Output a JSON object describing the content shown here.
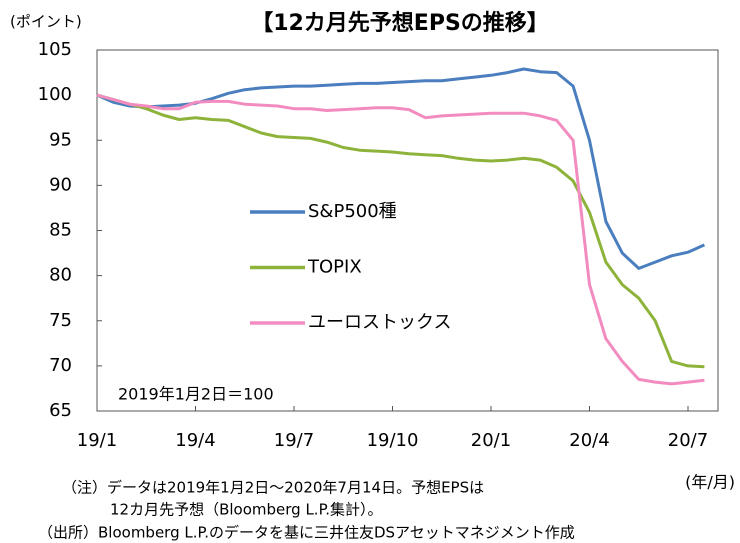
{
  "chart_data": {
    "type": "line",
    "title": "【12カ月先予想EPSの推移】",
    "y_label": "(ポイント)",
    "x_label": "(年/月)",
    "annotation": "2019年1月2日＝100",
    "notes": [
      "（注）データは2019年1月2日～2020年7月14日。予想EPSは",
      "12カ月先予想（Bloomberg L.P.集計）。",
      "（出所）Bloomberg L.P.のデータを基に三井住友DSアセットマネジメント作成"
    ],
    "categories": [
      "19/1",
      null,
      null,
      null,
      null,
      null,
      "19/4",
      null,
      null,
      null,
      null,
      null,
      "19/7",
      null,
      null,
      null,
      null,
      null,
      "19/10",
      null,
      null,
      null,
      null,
      null,
      "20/1",
      null,
      null,
      null,
      null,
      null,
      "20/4",
      null,
      null,
      null,
      null,
      null,
      "20/7",
      null
    ],
    "series": [
      {
        "name": "S&P500種",
        "color": "#4a7ebf",
        "values": [
          100,
          99.2,
          98.8,
          98.7,
          98.8,
          98.9,
          99.1,
          99.6,
          100.2,
          100.6,
          100.8,
          100.9,
          101.0,
          101.0,
          101.1,
          101.2,
          101.3,
          101.3,
          101.4,
          101.5,
          101.6,
          101.6,
          101.8,
          102.0,
          102.2,
          102.5,
          102.9,
          102.6,
          102.5,
          101.0,
          95.0,
          86.0,
          82.5,
          80.8,
          81.5,
          82.2,
          82.6,
          83.4
        ]
      },
      {
        "name": "TOPIX",
        "color": "#8db33a",
        "values": [
          100,
          99.5,
          99.0,
          98.5,
          97.8,
          97.3,
          97.5,
          97.3,
          97.2,
          96.5,
          95.8,
          95.4,
          95.3,
          95.2,
          94.8,
          94.2,
          93.9,
          93.8,
          93.7,
          93.5,
          93.4,
          93.3,
          93.0,
          92.8,
          92.7,
          92.8,
          93.0,
          92.8,
          92.0,
          90.5,
          87.0,
          81.5,
          79.0,
          77.5,
          75.0,
          70.5,
          70.0,
          69.9
        ]
      },
      {
        "name": "ユーロストックス",
        "color": "#f28cc0",
        "values": [
          100,
          99.5,
          99.0,
          98.8,
          98.5,
          98.5,
          99.2,
          99.3,
          99.3,
          99.0,
          98.9,
          98.8,
          98.5,
          98.5,
          98.3,
          98.4,
          98.5,
          98.6,
          98.6,
          98.4,
          97.5,
          97.7,
          97.8,
          97.9,
          98.0,
          98.0,
          98.0,
          97.7,
          97.2,
          95.0,
          79.0,
          73.0,
          70.5,
          68.5,
          68.2,
          68.0,
          68.2,
          68.4
        ]
      }
    ],
    "ylim": [
      65,
      105
    ],
    "yticks": [
      65,
      70,
      75,
      80,
      85,
      90,
      95,
      100,
      105
    ]
  }
}
